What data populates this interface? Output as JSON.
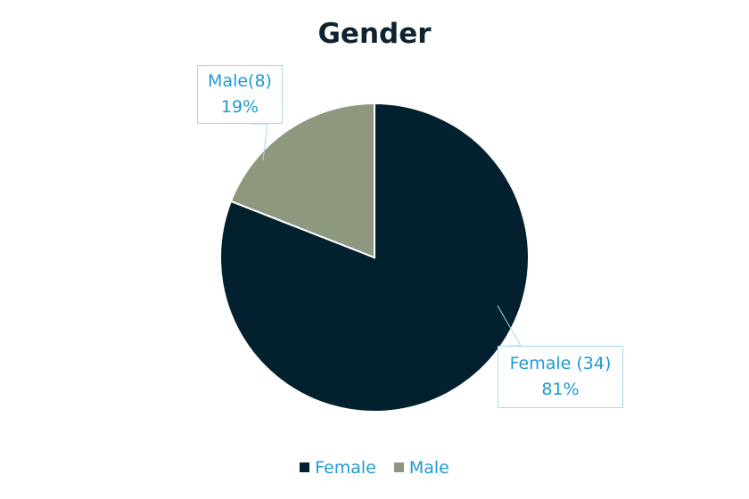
{
  "chart_data": {
    "type": "pie",
    "title": "Gender",
    "categories": [
      "Female",
      "Male"
    ],
    "values": [
      34,
      8
    ],
    "percentages": [
      "81%",
      "19%"
    ],
    "data_labels": [
      "Female (34)",
      "Male(8)"
    ],
    "colors": [
      "#03202f",
      "#8e987e"
    ],
    "legend": {
      "position": "bottom",
      "entries": [
        "Female",
        "Male"
      ]
    }
  }
}
